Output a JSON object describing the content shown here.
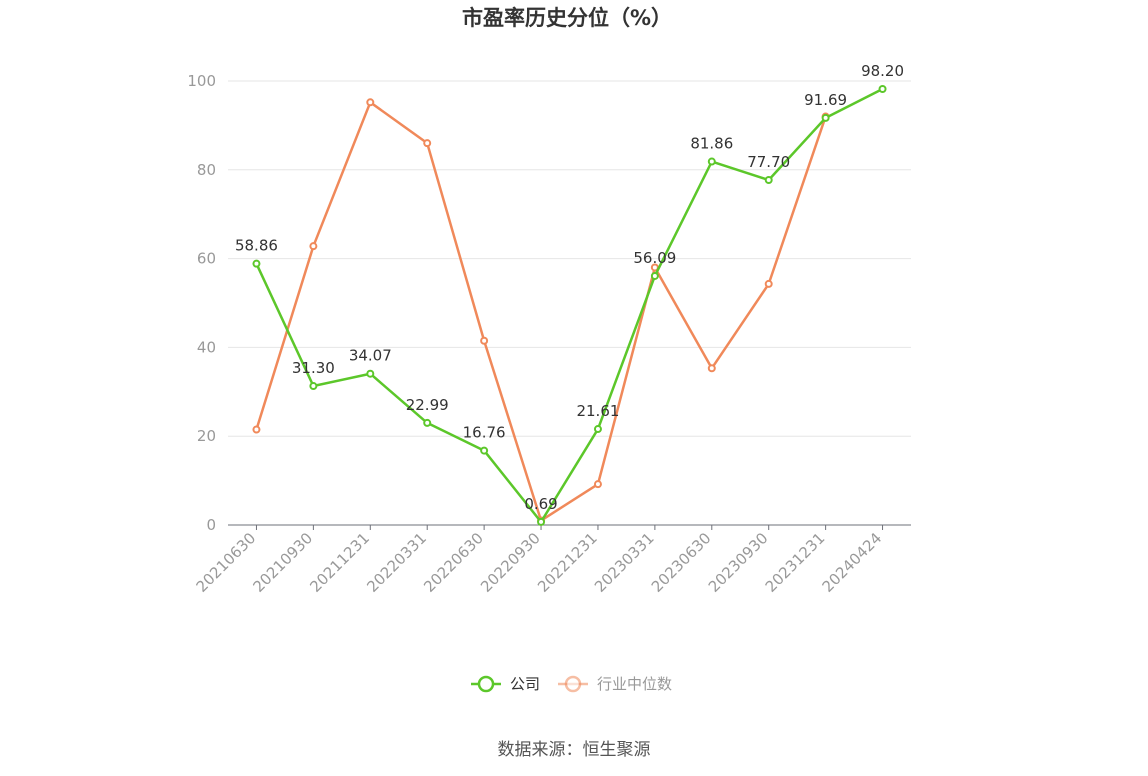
{
  "chart_data": {
    "type": "line",
    "title": "市盈率历史分位（%）",
    "categories": [
      "20210630",
      "20210930",
      "20211231",
      "20220331",
      "20220630",
      "20220930",
      "20221231",
      "20230331",
      "20230630",
      "20230930",
      "20231231",
      "20240424"
    ],
    "ylim": [
      0,
      100
    ],
    "yticks": [
      0,
      20,
      40,
      60,
      80,
      100
    ],
    "grid": true,
    "legend_position": "bottom",
    "series": [
      {
        "name": "公司",
        "color": "#5cc72a",
        "values": [
          58.86,
          31.3,
          34.07,
          22.99,
          16.76,
          0.69,
          21.61,
          56.09,
          81.86,
          77.7,
          91.69,
          98.2
        ],
        "labels": [
          "58.86",
          "31.30",
          "34.07",
          "22.99",
          "16.76",
          "0.69",
          "21.61",
          "56.09",
          "81.86",
          "77.70",
          "91.69",
          "98.20"
        ]
      },
      {
        "name": "行业中位数",
        "color": "#f0895a",
        "values": [
          21.5,
          62.8,
          95.2,
          86.0,
          41.5,
          1.0,
          9.2,
          58.0,
          35.3,
          54.3,
          92.0,
          null
        ]
      }
    ],
    "source": "数据来源：恒生聚源"
  }
}
